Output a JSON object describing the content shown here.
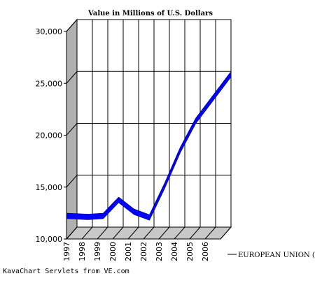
{
  "chart_data": {
    "type": "area",
    "title": "Value in Millions of U.S. Dollars",
    "xlabel": "",
    "ylabel": "",
    "categories": [
      "1997",
      "1998",
      "1999",
      "2000",
      "2001",
      "2002",
      "2003",
      "2004",
      "2005",
      "2006"
    ],
    "series": [
      {
        "name": "EUROPEAN UNION (To",
        "values": [
          11650,
          11550,
          11650,
          13200,
          12050,
          11500,
          14600,
          18000,
          20800,
          25300
        ]
      }
    ],
    "ylim": [
      10000,
      30000
    ],
    "y_ticks": [
      "10,000",
      "15,000",
      "20,000",
      "25,000",
      "30,000"
    ],
    "grid": true,
    "legend_position": "right",
    "style": "3d-ribbon"
  },
  "footer": {
    "credit": "KavaChart Servlets from VE.com"
  },
  "colors": {
    "series": "#0000ff",
    "wall": "#b0b0b0",
    "floor": "#c8c8c8",
    "grid": "#000000",
    "background": "#ffffff"
  }
}
